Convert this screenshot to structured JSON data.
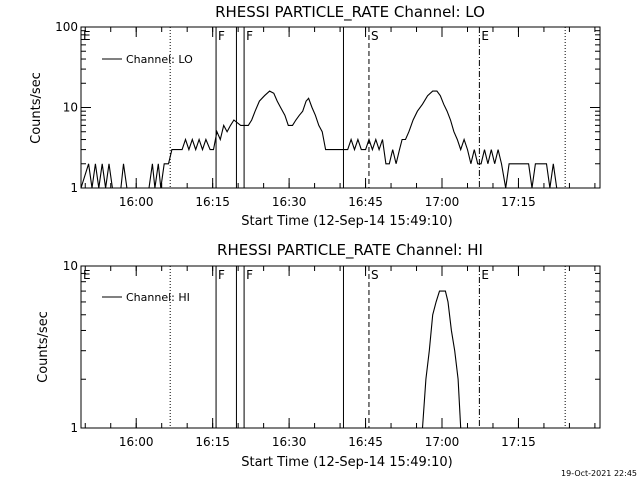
{
  "footer_timestamp": "19-Oct-2021 22:45",
  "colors": {
    "background": "#ffffff",
    "foreground": "#000000"
  },
  "chart_data": [
    {
      "type": "line",
      "title": "RHESSI PARTICLE_RATE Channel: LO",
      "xlabel": "Start Time (12-Sep-14 15:49:10)",
      "ylabel": "Counts/sec",
      "legend": {
        "label": "Channel: LO",
        "placement": "top-left"
      },
      "yscale": "log",
      "xlim": [
        "15:49:10",
        "17:31:00"
      ],
      "ylim": [
        1,
        100
      ],
      "xticks": [
        "16:00",
        "16:15",
        "16:30",
        "16:45",
        "17:00",
        "17:15"
      ],
      "yticks": [
        "1",
        "10",
        "100"
      ],
      "markers": [
        {
          "label": "E",
          "time": "15:49:10",
          "style": "solid"
        },
        {
          "label": "",
          "time": "16:06:40",
          "style": "dotted"
        },
        {
          "label": "F",
          "time": "16:15:40",
          "style": "solid"
        },
        {
          "label": "",
          "time": "16:19:40",
          "style": "solid"
        },
        {
          "label": "F",
          "time": "16:21:10",
          "style": "solid"
        },
        {
          "label": "",
          "time": "16:40:40",
          "style": "solid"
        },
        {
          "label": "S",
          "time": "16:45:40",
          "style": "dashed"
        },
        {
          "label": "E",
          "time": "17:07:20",
          "style": "dash-dot"
        },
        {
          "label": "",
          "time": "17:24:10",
          "style": "dotted"
        }
      ],
      "series": [
        {
          "name": "Channel: LO",
          "points": [
            [
              "15:49:10",
              1
            ],
            [
              "15:50:40",
              2
            ],
            [
              "15:51:20",
              1
            ],
            [
              "15:52:00",
              2
            ],
            [
              "15:52:40",
              1
            ],
            [
              "15:53:20",
              2
            ],
            [
              "15:54:00",
              1
            ],
            [
              "15:54:40",
              2
            ],
            [
              "15:55:20",
              1
            ],
            [
              "15:57:00",
              1
            ],
            [
              "15:57:30",
              2
            ],
            [
              "15:58:10",
              1
            ],
            [
              "16:02:30",
              1
            ],
            [
              "16:03:10",
              2
            ],
            [
              "16:03:40",
              1
            ],
            [
              "16:04:20",
              2
            ],
            [
              "16:04:50",
              1
            ],
            [
              "16:05:30",
              2
            ],
            [
              "16:06:20",
              2
            ],
            [
              "16:07:00",
              3
            ],
            [
              "16:09:00",
              3
            ],
            [
              "16:09:40",
              4
            ],
            [
              "16:10:20",
              3
            ],
            [
              "16:11:00",
              4
            ],
            [
              "16:11:40",
              3
            ],
            [
              "16:12:20",
              4
            ],
            [
              "16:13:00",
              3
            ],
            [
              "16:13:40",
              4
            ],
            [
              "16:14:30",
              3
            ],
            [
              "16:15:10",
              3
            ],
            [
              "16:15:50",
              5
            ],
            [
              "16:16:30",
              4
            ],
            [
              "16:17:10",
              6
            ],
            [
              "16:17:50",
              5
            ],
            [
              "16:18:30",
              6
            ],
            [
              "16:19:10",
              7
            ],
            [
              "16:20:30",
              6
            ],
            [
              "16:22:00",
              6
            ],
            [
              "16:22:40",
              7
            ],
            [
              "16:23:20",
              9
            ],
            [
              "16:24:10",
              12
            ],
            [
              "16:25:10",
              14
            ],
            [
              "16:26:10",
              16
            ],
            [
              "16:27:00",
              15
            ],
            [
              "16:27:40",
              12
            ],
            [
              "16:28:20",
              10
            ],
            [
              "16:29:10",
              8
            ],
            [
              "16:29:50",
              6
            ],
            [
              "16:30:40",
              6
            ],
            [
              "16:31:20",
              7
            ],
            [
              "16:32:00",
              8
            ],
            [
              "16:32:40",
              9
            ],
            [
              "16:33:20",
              12
            ],
            [
              "16:33:50",
              13
            ],
            [
              "16:34:30",
              10
            ],
            [
              "16:35:10",
              8
            ],
            [
              "16:35:50",
              6
            ],
            [
              "16:36:30",
              5
            ],
            [
              "16:37:10",
              3
            ],
            [
              "16:41:30",
              3
            ],
            [
              "16:42:10",
              4
            ],
            [
              "16:42:50",
              3
            ],
            [
              "16:43:30",
              4
            ],
            [
              "16:44:10",
              3
            ],
            [
              "16:45:00",
              3
            ],
            [
              "16:45:40",
              4
            ],
            [
              "16:46:20",
              3
            ],
            [
              "16:47:00",
              4
            ],
            [
              "16:47:40",
              3
            ],
            [
              "16:48:20",
              4
            ],
            [
              "16:49:00",
              2
            ],
            [
              "16:49:40",
              2
            ],
            [
              "16:50:20",
              3
            ],
            [
              "16:51:00",
              2
            ],
            [
              "16:51:40",
              3
            ],
            [
              "16:52:10",
              4
            ],
            [
              "16:52:50",
              4
            ],
            [
              "16:53:30",
              5
            ],
            [
              "16:54:20",
              7
            ],
            [
              "16:55:10",
              9
            ],
            [
              "16:56:10",
              11
            ],
            [
              "16:57:10",
              14
            ],
            [
              "16:58:10",
              16
            ],
            [
              "16:59:00",
              16
            ],
            [
              "16:59:40",
              14
            ],
            [
              "17:00:20",
              11
            ],
            [
              "17:01:00",
              9
            ],
            [
              "17:01:40",
              7
            ],
            [
              "17:02:20",
              5
            ],
            [
              "17:03:00",
              4
            ],
            [
              "17:03:40",
              3
            ],
            [
              "17:04:20",
              4
            ],
            [
              "17:05:00",
              3
            ],
            [
              "17:05:40",
              2
            ],
            [
              "17:06:20",
              3
            ],
            [
              "17:07:00",
              2
            ],
            [
              "17:07:40",
              2
            ],
            [
              "17:08:20",
              3
            ],
            [
              "17:09:00",
              2
            ],
            [
              "17:09:40",
              3
            ],
            [
              "17:10:20",
              2
            ],
            [
              "17:11:00",
              3
            ],
            [
              "17:11:40",
              2
            ],
            [
              "17:12:30",
              1
            ],
            [
              "17:13:10",
              2
            ],
            [
              "17:17:00",
              2
            ],
            [
              "17:17:40",
              1
            ],
            [
              "17:18:20",
              2
            ],
            [
              "17:20:30",
              2
            ],
            [
              "17:21:10",
              1
            ],
            [
              "17:21:50",
              2
            ],
            [
              "17:22:30",
              1
            ],
            [
              "17:23:30",
              1
            ]
          ]
        }
      ]
    },
    {
      "type": "line",
      "title": "RHESSI PARTICLE_RATE Channel: HI",
      "xlabel": "Start Time (12-Sep-14 15:49:10)",
      "ylabel": "Counts/sec",
      "legend": {
        "label": "Channel: HI",
        "placement": "top-left"
      },
      "yscale": "log",
      "xlim": [
        "15:49:10",
        "17:31:00"
      ],
      "ylim": [
        1,
        10
      ],
      "xticks": [
        "16:00",
        "16:15",
        "16:30",
        "16:45",
        "17:00",
        "17:15"
      ],
      "yticks": [
        "1",
        "10"
      ],
      "markers": [
        {
          "label": "E",
          "time": "15:49:10",
          "style": "solid"
        },
        {
          "label": "",
          "time": "16:06:40",
          "style": "dotted"
        },
        {
          "label": "F",
          "time": "16:15:40",
          "style": "solid"
        },
        {
          "label": "",
          "time": "16:19:40",
          "style": "solid"
        },
        {
          "label": "F",
          "time": "16:21:10",
          "style": "solid"
        },
        {
          "label": "",
          "time": "16:40:40",
          "style": "solid"
        },
        {
          "label": "S",
          "time": "16:45:40",
          "style": "dashed"
        },
        {
          "label": "E",
          "time": "17:07:20",
          "style": "dash-dot"
        },
        {
          "label": "",
          "time": "17:24:10",
          "style": "dotted"
        }
      ],
      "series": [
        {
          "name": "Channel: HI",
          "points": [
            [
              "16:56:10",
              1
            ],
            [
              "16:56:50",
              2
            ],
            [
              "16:57:30",
              3
            ],
            [
              "16:58:10",
              5
            ],
            [
              "16:58:50",
              6
            ],
            [
              "16:59:30",
              7
            ],
            [
              "17:00:00",
              7
            ],
            [
              "17:00:40",
              7
            ],
            [
              "17:01:10",
              6
            ],
            [
              "17:01:50",
              4
            ],
            [
              "17:02:30",
              3
            ],
            [
              "17:03:10",
              2
            ],
            [
              "17:03:40",
              1
            ]
          ]
        }
      ]
    }
  ]
}
